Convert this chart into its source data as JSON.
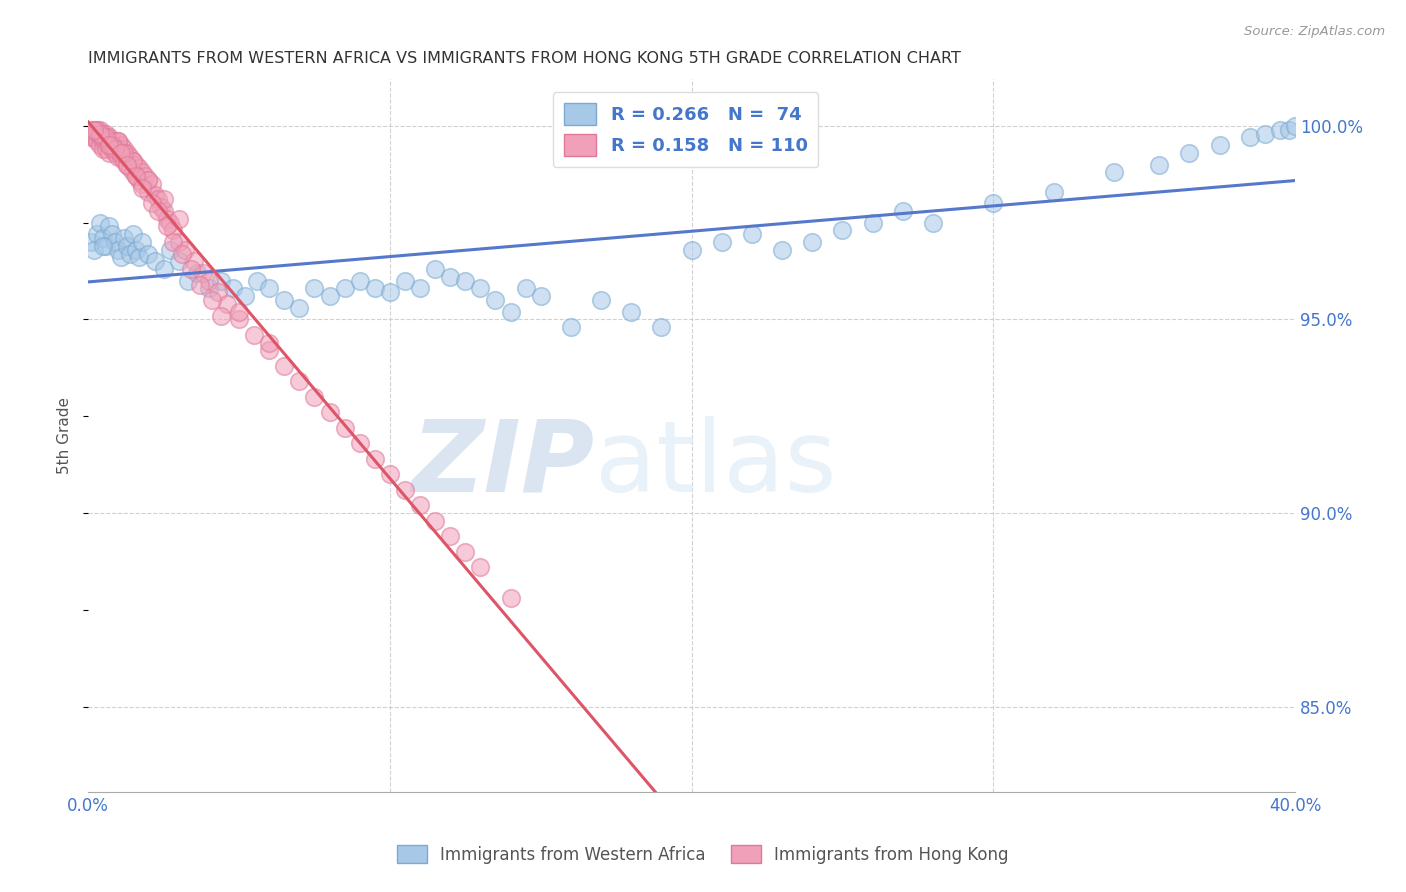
{
  "title": "IMMIGRANTS FROM WESTERN AFRICA VS IMMIGRANTS FROM HONG KONG 5TH GRADE CORRELATION CHART",
  "source": "Source: ZipAtlas.com",
  "ylabel_left": "5th Grade",
  "x_min": 0.0,
  "x_max": 0.4,
  "y_min": 0.828,
  "y_max": 1.012,
  "right_yticks": [
    1.0,
    0.95,
    0.9,
    0.85
  ],
  "right_ytick_labels": [
    "100.0%",
    "95.0%",
    "90.0%",
    "85.0%"
  ],
  "blue_R": 0.266,
  "blue_N": 74,
  "pink_R": 0.158,
  "pink_N": 110,
  "blue_color": "#A8C8E8",
  "pink_color": "#F0A0B8",
  "blue_edge_color": "#7AAAD0",
  "pink_edge_color": "#E07898",
  "blue_line_color": "#5577CC",
  "pink_line_color": "#DD5566",
  "legend_blue_label": "Immigrants from Western Africa",
  "legend_pink_label": "Immigrants from Hong Kong",
  "watermark_ZIP": "ZIP",
  "watermark_atlas": "atlas",
  "background_color": "#FFFFFF",
  "grid_color": "#CCCCCC",
  "title_color": "#333333",
  "axis_tick_color": "#4477CC",
  "blue_x": [
    0.001,
    0.002,
    0.003,
    0.004,
    0.005,
    0.006,
    0.007,
    0.008,
    0.009,
    0.01,
    0.011,
    0.012,
    0.013,
    0.014,
    0.015,
    0.016,
    0.017,
    0.018,
    0.02,
    0.022,
    0.025,
    0.027,
    0.03,
    0.033,
    0.036,
    0.04,
    0.044,
    0.048,
    0.052,
    0.056,
    0.06,
    0.065,
    0.07,
    0.075,
    0.08,
    0.085,
    0.09,
    0.095,
    0.1,
    0.105,
    0.11,
    0.115,
    0.12,
    0.125,
    0.13,
    0.135,
    0.14,
    0.145,
    0.15,
    0.16,
    0.17,
    0.18,
    0.19,
    0.2,
    0.21,
    0.22,
    0.23,
    0.24,
    0.25,
    0.26,
    0.27,
    0.28,
    0.3,
    0.32,
    0.34,
    0.355,
    0.365,
    0.375,
    0.385,
    0.39,
    0.395,
    0.398,
    0.4,
    0.005
  ],
  "blue_y": [
    0.97,
    0.968,
    0.972,
    0.975,
    0.971,
    0.969,
    0.974,
    0.972,
    0.97,
    0.968,
    0.966,
    0.971,
    0.969,
    0.967,
    0.972,
    0.968,
    0.966,
    0.97,
    0.967,
    0.965,
    0.963,
    0.968,
    0.965,
    0.96,
    0.962,
    0.958,
    0.96,
    0.958,
    0.956,
    0.96,
    0.958,
    0.955,
    0.953,
    0.958,
    0.956,
    0.958,
    0.96,
    0.958,
    0.957,
    0.96,
    0.958,
    0.963,
    0.961,
    0.96,
    0.958,
    0.955,
    0.952,
    0.958,
    0.956,
    0.948,
    0.955,
    0.952,
    0.948,
    0.968,
    0.97,
    0.972,
    0.968,
    0.97,
    0.973,
    0.975,
    0.978,
    0.975,
    0.98,
    0.983,
    0.988,
    0.99,
    0.993,
    0.995,
    0.997,
    0.998,
    0.999,
    0.999,
    1.0,
    0.969
  ],
  "pink_x": [
    0.001,
    0.001,
    0.001,
    0.002,
    0.002,
    0.002,
    0.003,
    0.003,
    0.003,
    0.004,
    0.004,
    0.004,
    0.005,
    0.005,
    0.005,
    0.005,
    0.006,
    0.006,
    0.006,
    0.007,
    0.007,
    0.007,
    0.008,
    0.008,
    0.009,
    0.009,
    0.01,
    0.01,
    0.01,
    0.011,
    0.011,
    0.012,
    0.012,
    0.013,
    0.013,
    0.014,
    0.014,
    0.015,
    0.015,
    0.016,
    0.016,
    0.017,
    0.017,
    0.018,
    0.018,
    0.019,
    0.02,
    0.02,
    0.021,
    0.022,
    0.023,
    0.024,
    0.025,
    0.026,
    0.027,
    0.028,
    0.03,
    0.032,
    0.035,
    0.038,
    0.04,
    0.043,
    0.046,
    0.05,
    0.055,
    0.06,
    0.065,
    0.07,
    0.075,
    0.08,
    0.085,
    0.09,
    0.095,
    0.1,
    0.105,
    0.11,
    0.115,
    0.12,
    0.125,
    0.13,
    0.14,
    0.05,
    0.06,
    0.01,
    0.015,
    0.02,
    0.025,
    0.03,
    0.012,
    0.008,
    0.005,
    0.003,
    0.006,
    0.009,
    0.004,
    0.007,
    0.002,
    0.011,
    0.013,
    0.016,
    0.018,
    0.021,
    0.023,
    0.026,
    0.028,
    0.031,
    0.034,
    0.037,
    0.041,
    0.044
  ],
  "pink_y": [
    0.999,
    0.998,
    0.997,
    0.999,
    0.998,
    0.997,
    0.999,
    0.998,
    0.996,
    0.999,
    0.997,
    0.995,
    0.998,
    0.997,
    0.996,
    0.994,
    0.998,
    0.996,
    0.994,
    0.997,
    0.995,
    0.993,
    0.996,
    0.994,
    0.996,
    0.993,
    0.996,
    0.994,
    0.992,
    0.995,
    0.992,
    0.994,
    0.991,
    0.993,
    0.99,
    0.992,
    0.989,
    0.991,
    0.988,
    0.99,
    0.987,
    0.989,
    0.986,
    0.988,
    0.985,
    0.987,
    0.986,
    0.983,
    0.985,
    0.982,
    0.981,
    0.979,
    0.978,
    0.976,
    0.975,
    0.973,
    0.97,
    0.968,
    0.965,
    0.962,
    0.96,
    0.957,
    0.954,
    0.95,
    0.946,
    0.942,
    0.938,
    0.934,
    0.93,
    0.926,
    0.922,
    0.918,
    0.914,
    0.91,
    0.906,
    0.902,
    0.898,
    0.894,
    0.89,
    0.886,
    0.878,
    0.952,
    0.944,
    0.996,
    0.991,
    0.986,
    0.981,
    0.976,
    0.993,
    0.995,
    0.997,
    0.999,
    0.997,
    0.994,
    0.998,
    0.995,
    0.999,
    0.993,
    0.99,
    0.987,
    0.984,
    0.98,
    0.978,
    0.974,
    0.97,
    0.967,
    0.963,
    0.959,
    0.955,
    0.951
  ]
}
